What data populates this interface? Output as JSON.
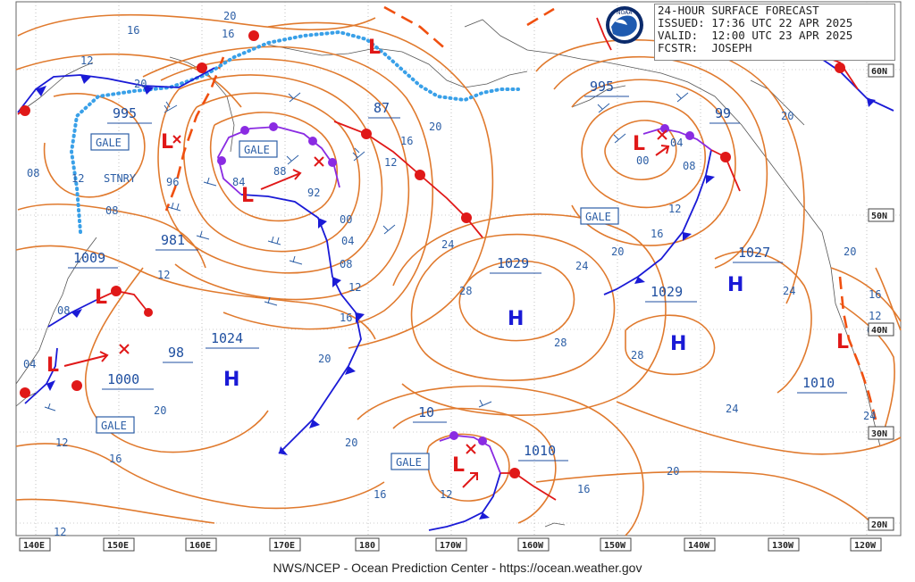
{
  "header": {
    "title": "24-HOUR SURFACE FORECAST",
    "issued": "ISSUED: 17:36 UTC 22 APR 2025",
    "valid": "VALID:  12:00 UTC 23 APR 2025",
    "forecaster": "FCSTR:  JOSEPH",
    "logo_text": "NOAA"
  },
  "footer": {
    "credit": "NWS/NCEP - Ocean Prediction Center - https://ocean.weather.gov"
  },
  "longitudes": [
    "140E",
    "150E",
    "160E",
    "170E",
    "180",
    "170W",
    "160W",
    "150W",
    "140W",
    "130W",
    "120W"
  ],
  "latitudes": [
    "60N",
    "50N",
    "40N",
    "30N",
    "20N"
  ],
  "pressure_labels": [
    "995",
    "981",
    "1009",
    "1000",
    "98",
    "1024",
    "87",
    "995",
    "99",
    "1029",
    "1027",
    "1029",
    "1010",
    "10",
    "1010"
  ],
  "system_labels": {
    "high": "H",
    "low": "L"
  },
  "tags": {
    "gale": "GALE",
    "stationary": "STNRY"
  },
  "isobar_labels": [
    "20",
    "16",
    "12",
    "20",
    "12",
    "08",
    "08",
    "12",
    "96",
    "84",
    "88",
    "92",
    "00",
    "04",
    "08",
    "12",
    "16",
    "20",
    "20",
    "16",
    "12",
    "24",
    "28",
    "28",
    "20",
    "24",
    "28",
    "24",
    "20",
    "00",
    "04",
    "08",
    "12",
    "16",
    "20",
    "24",
    "20",
    "16",
    "12",
    "04",
    "08",
    "12",
    "16",
    "20",
    "12",
    "16",
    "16",
    "12",
    "16",
    "04",
    "20",
    "24"
  ],
  "colors": {
    "isobar": "#e07a2e",
    "cold_front": "#1a1ad6",
    "warm_front": "#e01818",
    "occluded_front": "#8a2be2",
    "stationary_front": "#39a0e8",
    "trough": "#f05010",
    "label_text": "#2d5fa6"
  }
}
